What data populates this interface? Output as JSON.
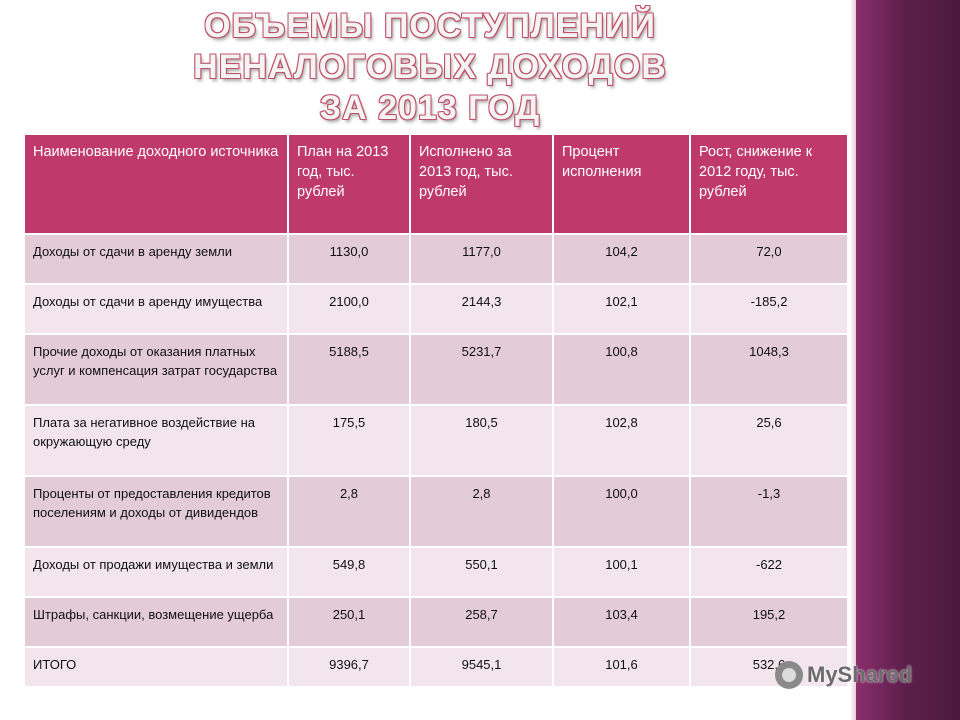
{
  "slide": {
    "title_lines": [
      "Объемы поступлений",
      "неналоговых доходов",
      "за 2013 год"
    ]
  },
  "table": {
    "headers": [
      "Наименование доходного источника",
      "План на 2013 год, тыс. рублей",
      "Исполнено за 2013 год, тыс. рублей",
      "Процент исполнения",
      "Рост, снижение к 2012 году, тыс. рублей"
    ],
    "rows": [
      [
        "Доходы от сдачи в аренду земли",
        "1130,0",
        "1177,0",
        "104,2",
        "72,0"
      ],
      [
        "Доходы от сдачи в аренду имущества",
        "2100,0",
        "2144,3",
        "102,1",
        "-185,2"
      ],
      [
        "Прочие доходы от оказания платных услуг и компенсация затрат государства",
        "5188,5",
        "5231,7",
        "100,8",
        "1048,3"
      ],
      [
        "Плата за негативное воздействие на окружающую среду",
        "175,5",
        "180,5",
        "102,8",
        "25,6"
      ],
      [
        "Проценты от предоставления кредитов поселениям и доходы от дивидендов",
        "2,8",
        "2,8",
        "100,0",
        "-1,3"
      ],
      [
        "Доходы от продажи имущества и земли",
        "549,8",
        "550,1",
        "100,1",
        "-622"
      ],
      [
        "Штрафы, санкции, возмещение ущерба",
        "250,1",
        "258,7",
        "103,4",
        "195,2"
      ],
      [
        "ИТОГО",
        "9396,7",
        "9545,1",
        "101,6",
        "532,6"
      ]
    ]
  },
  "watermark": {
    "text": "MyShared",
    "icon": "myshared-logo-icon"
  },
  "colors": {
    "header_bg": "#bf3a6a",
    "row_odd": "#e4ccd6",
    "row_even": "#f2e6ec",
    "side_band": "#5e1f4c"
  }
}
